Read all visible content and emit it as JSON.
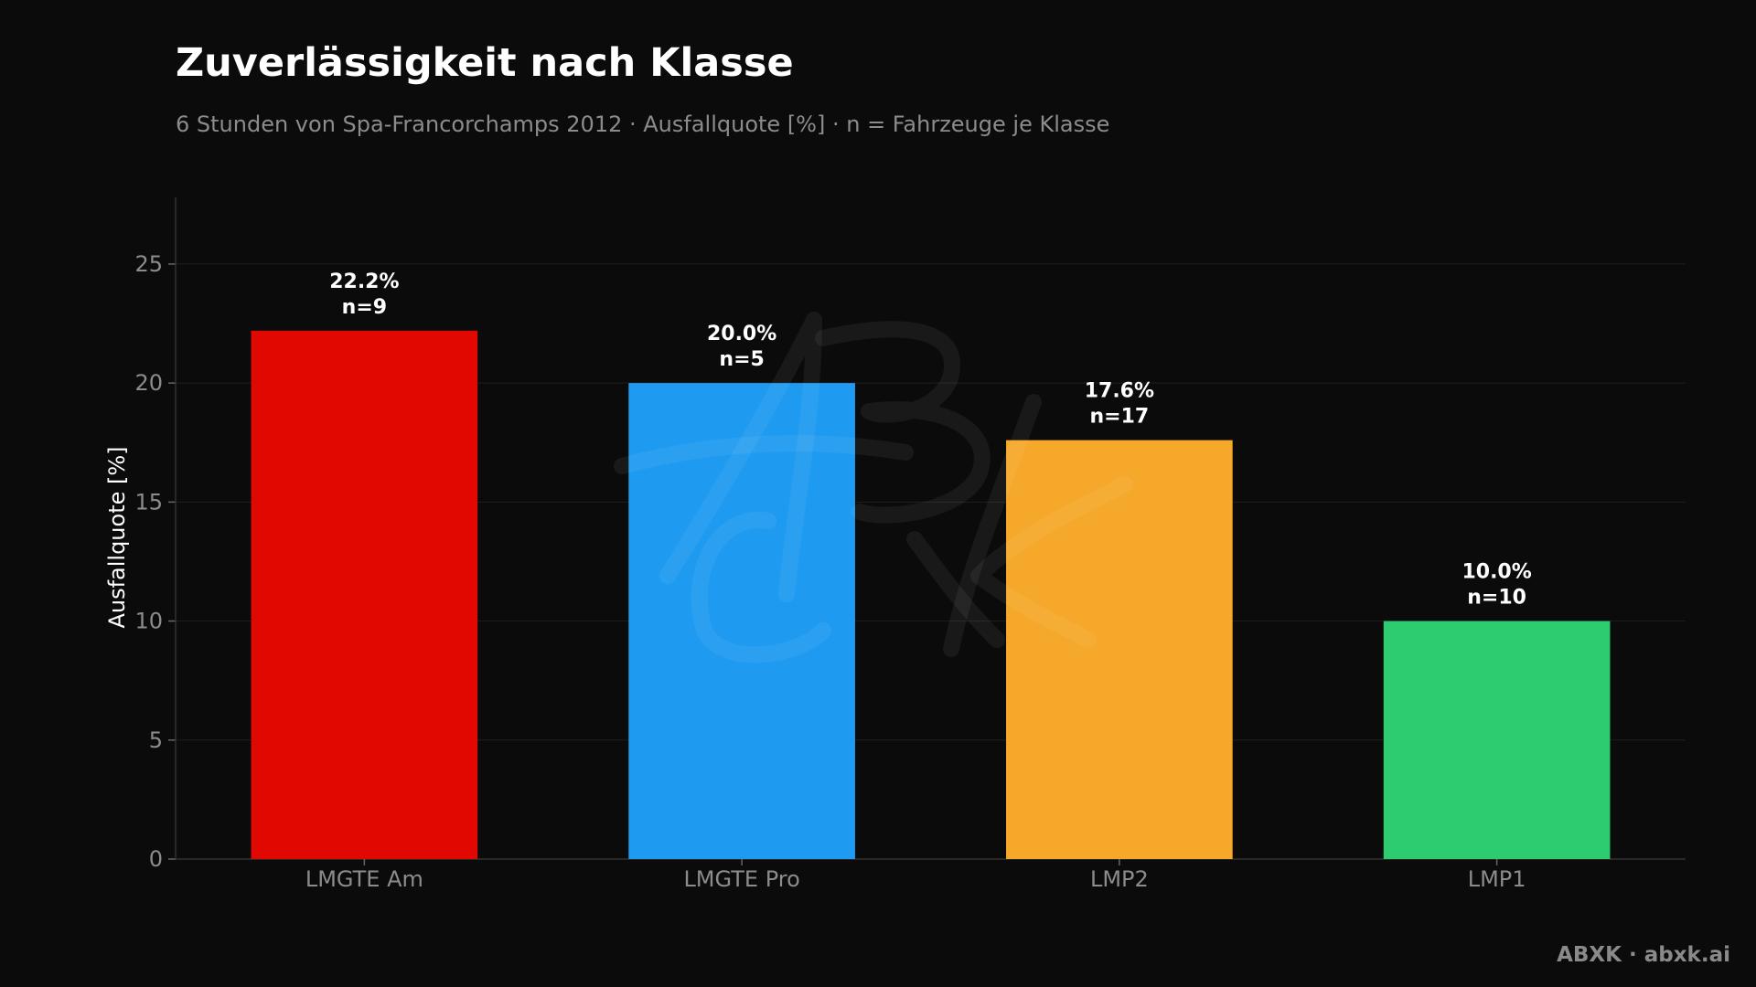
{
  "header": {
    "title": "Zuverlässigkeit nach Klasse",
    "subtitle": "6 Stunden von Spa-Francorchamps 2012 · Ausfallquote [%] · n = Fahrzeuge je Klasse"
  },
  "chart_data": {
    "type": "bar",
    "title": "Zuverlässigkeit nach Klasse",
    "subtitle": "6 Stunden von Spa-Francorchamps 2012 · Ausfallquote [%] · n = Fahrzeuge je Klasse",
    "xlabel": "",
    "ylabel": "Ausfallquote [%]",
    "ylim": [
      0,
      27.8
    ],
    "yticks": [
      0,
      5,
      10,
      15,
      20,
      25
    ],
    "grid": true,
    "categories": [
      "LMGTE Am",
      "LMGTE Pro",
      "LMP2",
      "LMP1"
    ],
    "values": [
      22.2,
      20.0,
      17.6,
      10.0
    ],
    "value_labels": [
      "22.2%",
      "20.0%",
      "17.6%",
      "10.0%"
    ],
    "n_labels": [
      "n=9",
      "n=5",
      "n=17",
      "n=10"
    ],
    "colors": [
      "#e00800",
      "#1e9bf0",
      "#f5a82a",
      "#2ecc71"
    ]
  },
  "watermark": {
    "logo_text": "ABXK"
  },
  "footer": {
    "credit": "ABXK · abxk.ai"
  },
  "colors": {
    "background": "#0b0b0b",
    "grid": "#1f1f1f",
    "axis": "#333333",
    "tick_text": "#8c8c8c",
    "label_text": "#ffffff"
  }
}
